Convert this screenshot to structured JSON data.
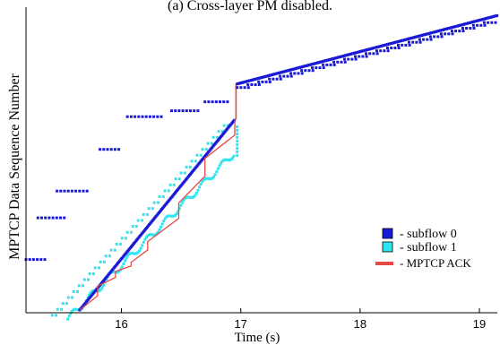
{
  "chart_data": {
    "type": "scatter",
    "title": "(a) Cross-layer PM disabled.",
    "xlabel": "Time (s)",
    "ylabel": "MPTCP Data Sequence Number",
    "xlim": [
      15.2,
      19.15
    ],
    "ylim": [
      0,
      100
    ],
    "xticks": [
      "16",
      "17",
      "18",
      "19"
    ],
    "xtick_values": [
      16,
      17,
      18,
      19
    ],
    "grid": false,
    "legend_position": "bottom-right",
    "series": [
      {
        "name": "- subflow 0",
        "color": "#1a1ad6",
        "marker": "square",
        "segments": [
          [
            15.2,
            15.4,
            17
          ],
          [
            15.3,
            15.55,
            31
          ],
          [
            15.45,
            15.75,
            40
          ],
          [
            15.82,
            16.05,
            53
          ],
          [
            16.0,
            16.35,
            70
          ],
          [
            16.35,
            16.65,
            71
          ],
          [
            16.7,
            16.95,
            73
          ],
          [
            15.65,
            16.95,
            [
              0,
              64
            ],
            "diagonal"
          ],
          [
            17.0,
            19.15,
            [
              79,
              99
            ],
            "diagonal"
          ]
        ]
      },
      {
        "name": "- subflow 1",
        "color": "#2ee6f0",
        "marker": "square",
        "segments": [
          [
            15.55,
            16.98,
            [
              -1,
              57
            ],
            "diagonal"
          ],
          [
            15.4,
            16.9,
            [
              0,
              65
            ],
            "stair-ahead"
          ]
        ]
      },
      {
        "name": "- MPTCP ACK",
        "color": "#e84848",
        "marker": "line",
        "segments": [
          [
            15.65,
            16.95,
            [
              0,
              64
            ],
            "staircase"
          ],
          [
            16.95,
            16.95,
            [
              64,
              77
            ],
            "jump"
          ]
        ]
      }
    ]
  },
  "legend": {
    "subflow0_label": "- subflow 0",
    "subflow1_label": "- subflow 1",
    "ack_label": "- MPTCP ACK"
  },
  "colors": {
    "subflow0": "#1a1ad6",
    "subflow1": "#2ee6f0",
    "ack": "#e84848",
    "axis": "#000000"
  }
}
